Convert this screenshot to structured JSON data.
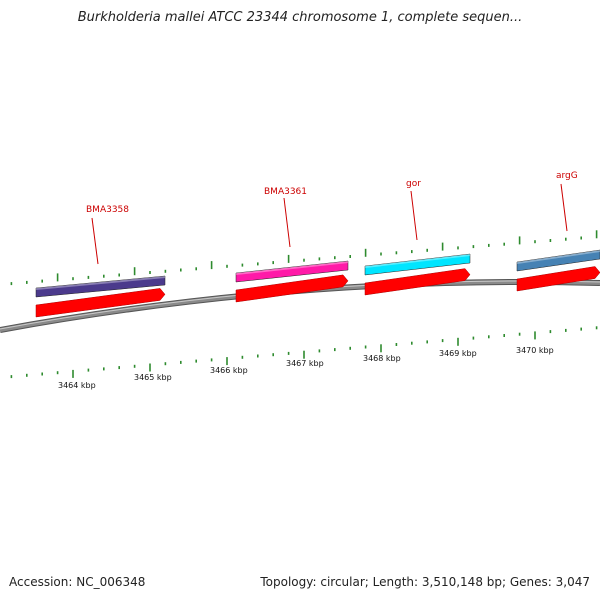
{
  "title": "Burkholderia mallei ATCC 23344 chromosome 1, complete sequen...",
  "footer": {
    "accession": "Accession: NC_006348",
    "stats": "Topology: circular; Length: 3,510,148 bp; Genes: 3,047"
  },
  "colors": {
    "background": "#ffffff",
    "backbone": "#8a8a8a",
    "tick": "#2e8b2e",
    "cds": "#ff0000",
    "label": "#cc0000"
  },
  "axis": {
    "unit": "kbp",
    "labels": [
      "3464 kbp",
      "3465 kbp",
      "3466 kbp",
      "3467 kbp",
      "3468 kbp",
      "3469 kbp",
      "3470 kbp"
    ]
  },
  "genes": [
    {
      "name": "BMA3358",
      "color": "#4b3a8c"
    },
    {
      "name": "BMA3361",
      "color": "#ff1aa8"
    },
    {
      "name": "gor",
      "color": "#00e5ff"
    },
    {
      "name": "argG",
      "color": "#4682b4"
    }
  ]
}
